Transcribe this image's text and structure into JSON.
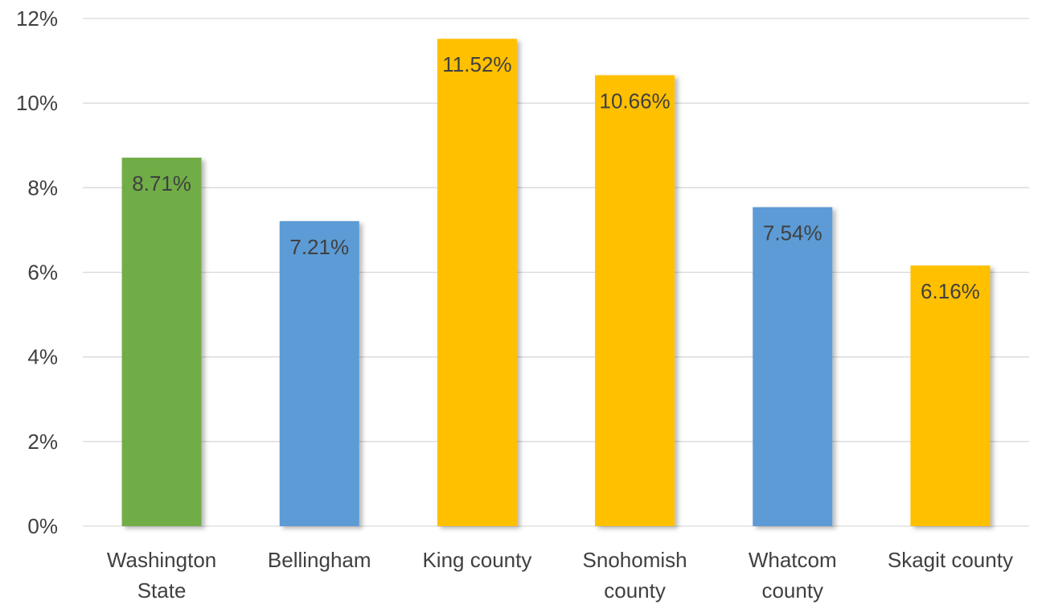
{
  "chart_data": {
    "type": "bar",
    "title": "",
    "xlabel": "",
    "ylabel": "",
    "categories": [
      [
        "Washington",
        "State"
      ],
      [
        "Bellingham"
      ],
      [
        "King county"
      ],
      [
        "Snohomish",
        "county"
      ],
      [
        "Whatcom",
        "county"
      ],
      [
        "Skagit county"
      ]
    ],
    "values": [
      8.71,
      7.21,
      11.52,
      10.66,
      7.54,
      6.16
    ],
    "data_labels": [
      "8.71%",
      "7.21%",
      "11.52%",
      "10.66%",
      "7.54%",
      "6.16%"
    ],
    "bar_colors": [
      "#70ad47",
      "#5b9bd5",
      "#ffc000",
      "#ffc000",
      "#5b9bd5",
      "#ffc000"
    ],
    "ylim": [
      0,
      12
    ],
    "yticks": [
      0,
      2,
      4,
      6,
      8,
      10,
      12
    ],
    "ytick_labels": [
      "0%",
      "2%",
      "4%",
      "6%",
      "8%",
      "10%",
      "12%"
    ],
    "grid": true,
    "legend": "none",
    "colors": {
      "grid": "#d9d9d9",
      "axis_text": "#404040",
      "label_text": "#404040"
    }
  }
}
